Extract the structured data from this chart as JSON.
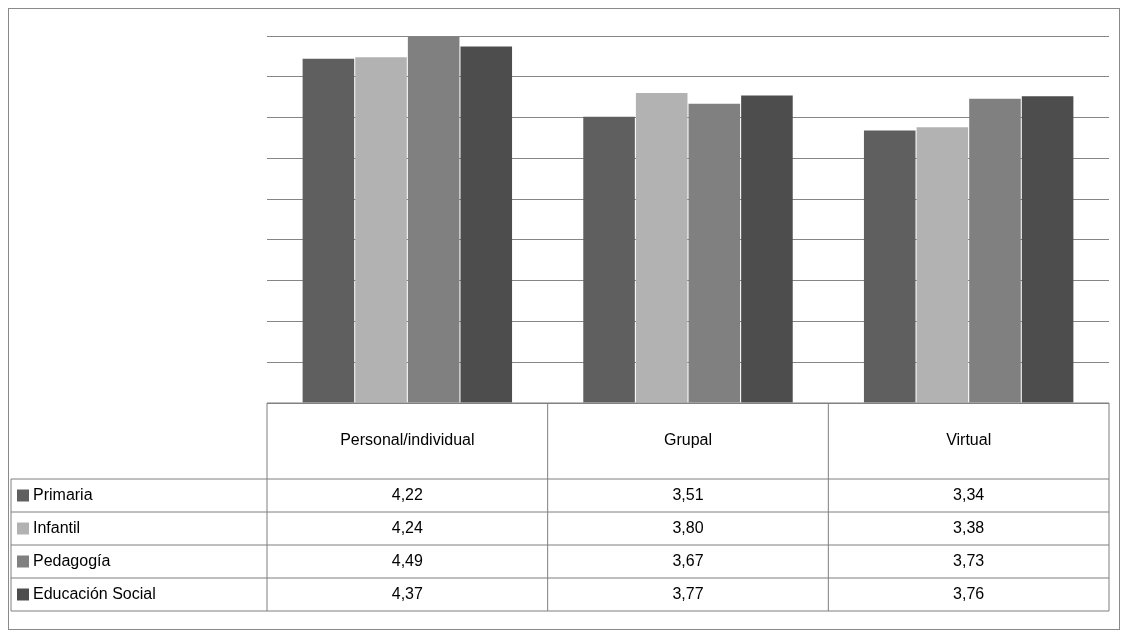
{
  "chart_data": {
    "type": "bar",
    "categories": [
      "Personal/individual",
      "Grupal",
      "Virtual"
    ],
    "series": [
      {
        "name": "Primaria",
        "color": "#5f5f5f",
        "values": [
          4.22,
          3.51,
          3.34
        ],
        "value_labels": [
          "4,22",
          "3,51",
          "3,34"
        ]
      },
      {
        "name": "Infantil",
        "color": "#b2b2b2",
        "values": [
          4.24,
          3.8,
          3.38
        ],
        "value_labels": [
          "4,24",
          "3,80",
          "3,38"
        ]
      },
      {
        "name": "Pedagogía",
        "color": "#808080",
        "values": [
          4.49,
          3.67,
          3.73
        ],
        "value_labels": [
          "4,49",
          "3,67",
          "3,73"
        ]
      },
      {
        "name": "Educación Social",
        "color": "#4d4d4d",
        "values": [
          4.37,
          3.77,
          3.76
        ],
        "value_labels": [
          "4,37",
          "3,77",
          "3,76"
        ]
      }
    ],
    "grid": "y",
    "legend": "bottom",
    "tick_labels": "x"
  }
}
